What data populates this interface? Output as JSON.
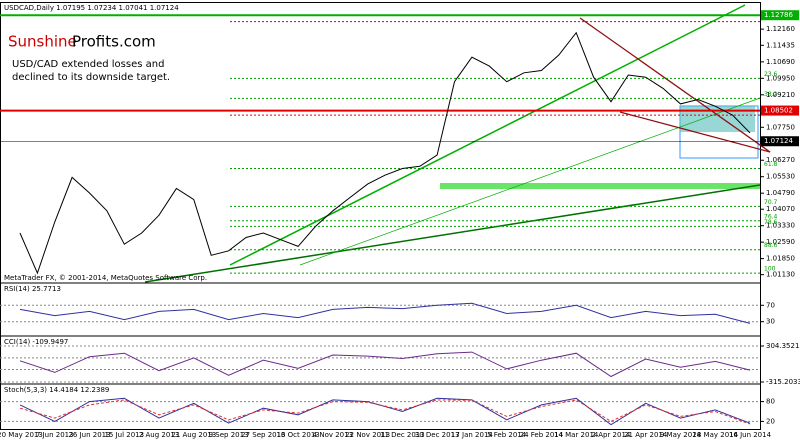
{
  "brand": {
    "red": "Sunshine",
    "dark": "Profits.com"
  },
  "note": [
    "USD/CAD extended losses and",
    "declined to its downside target."
  ],
  "copyright": "MetaTrader FX, © 2001-2014, MetaQuotes Software Corp.",
  "chart_data": [
    {
      "type": "line",
      "title": "USDCAD,Daily  1.07195 1.07234 1.07041 1.07124",
      "categories": [
        "20 May 2013",
        null,
        "7 Jun 2013",
        null,
        "26 Jun 2013",
        null,
        "15 Jul 2013",
        null,
        "2 Aug 2013",
        null,
        "21 Aug 2013",
        null,
        "9 Sep 2013",
        null,
        "27 Sep 2013",
        null,
        "16 Oct 2013",
        null,
        "4 Nov 2013",
        null,
        "22 Nov 2013",
        null,
        "11 Dec 2013",
        null,
        "30 Dec 2013",
        null,
        "17 Jan 2014",
        null,
        "5 Feb 2014",
        null,
        "24 Feb 2014",
        null,
        "14 Mar 2014",
        null,
        "2 Apr 2014",
        null,
        "21 Apr 2014",
        null,
        "9 May 2014",
        null,
        "28 May 2014",
        null,
        "16 Jun 2014"
      ],
      "values": [
        1.03,
        1.012,
        1.035,
        1.055,
        1.048,
        1.04,
        1.025,
        1.03,
        1.038,
        1.05,
        1.045,
        1.02,
        1.022,
        1.028,
        1.03,
        1.027,
        1.024,
        1.033,
        1.04,
        1.046,
        1.052,
        1.056,
        1.059,
        1.06,
        1.065,
        1.098,
        1.109,
        1.105,
        1.098,
        1.102,
        1.103,
        1.11,
        1.12,
        1.1,
        1.089,
        1.101,
        1.1,
        1.095,
        1.088,
        1.09,
        1.087,
        1.083,
        1.075
      ],
      "color": "#000000",
      "ylim": [
        1.008,
        1.132
      ],
      "yticks": [
        {
          "value": 1.1216,
          "label": "1.12160"
        },
        {
          "value": 1.11435,
          "label": "1.11435"
        },
        {
          "value": 1.1069,
          "label": "1.10690"
        },
        {
          "value": 1.0995,
          "label": "1.09950"
        },
        {
          "value": 1.0921,
          "label": "1.09210"
        },
        {
          "value": 1.0775,
          "label": "1.07750"
        },
        {
          "value": 1.0627,
          "label": "1.06270"
        },
        {
          "value": 1.0553,
          "label": "1.05530"
        },
        {
          "value": 1.0479,
          "label": "1.04790"
        },
        {
          "value": 1.0407,
          "label": "1.04070"
        },
        {
          "value": 1.0333,
          "label": "1.03330"
        },
        {
          "value": 1.0259,
          "label": "1.02590"
        },
        {
          "value": 1.0185,
          "label": "1.01850"
        },
        {
          "value": 1.0113,
          "label": "1.01130"
        }
      ],
      "levels": [
        {
          "value": 1.12786,
          "label": "1.12786",
          "color": "#00b000"
        },
        {
          "value": 1.08502,
          "label": "1.08502",
          "color": "#e00000"
        },
        {
          "value": 1.07124,
          "label": "1.07124",
          "color": "#000000"
        }
      ],
      "fib_levels": [
        {
          "value": 1.125,
          "label": "88.6",
          "color": "#e00000"
        },
        {
          "value": 1.0995,
          "label": "23.6",
          "color": "#00a000"
        },
        {
          "value": 1.0905,
          "label": "38.2",
          "color": "#00a000"
        },
        {
          "value": 1.083,
          "label": "50.0",
          "color": "#e00000"
        },
        {
          "value": 1.059,
          "label": "61.8",
          "color": "#00a000"
        },
        {
          "value": 1.042,
          "label": "70.7",
          "color": "#00a000"
        },
        {
          "value": 1.0355,
          "label": "76.4",
          "color": "#00a000"
        },
        {
          "value": 1.033,
          "label": "78.6",
          "color": "#00a000"
        },
        {
          "value": 1.0225,
          "label": "88.6",
          "color": "#00a000"
        },
        {
          "value": 1.012,
          "label": "100",
          "color": "#00a000"
        }
      ]
    },
    {
      "type": "line",
      "title": "RSI(14) 25.7713",
      "color": "#3030a0",
      "values": [
        60,
        45,
        55,
        35,
        55,
        60,
        35,
        50,
        40,
        60,
        65,
        62,
        70,
        75,
        50,
        55,
        70,
        40,
        55,
        45,
        48,
        25.7713
      ],
      "ylim": [
        0,
        100
      ],
      "yticks": [
        70,
        30
      ]
    },
    {
      "type": "line",
      "title": "CCI(14) -109.9497",
      "color": "#6a2a8a",
      "values": [
        50,
        -150,
        120,
        180,
        -120,
        100,
        -200,
        60,
        -80,
        150,
        130,
        90,
        170,
        200,
        -90,
        60,
        180,
        -220,
        80,
        -60,
        40,
        -109.9497
      ],
      "ylim": [
        -315.2033,
        304.3521
      ],
      "yticks": [
        304.3521,
        -315.2033
      ],
      "grid_levels": [
        100,
        -100
      ]
    },
    {
      "type": "line",
      "title": "Stoch(5,3,3) 14.4184 12.2389",
      "series": [
        {
          "name": "Main",
          "color": "#3030a0",
          "values": [
            70,
            20,
            80,
            90,
            30,
            75,
            15,
            60,
            40,
            85,
            80,
            50,
            90,
            85,
            25,
            70,
            90,
            10,
            75,
            30,
            55,
            14.4184
          ]
        },
        {
          "name": "Signal",
          "color": "#e03030",
          "values": [
            60,
            30,
            70,
            85,
            40,
            70,
            25,
            55,
            45,
            80,
            78,
            55,
            85,
            84,
            35,
            65,
            85,
            20,
            70,
            35,
            50,
            12.2389
          ]
        }
      ],
      "ylim": [
        0,
        100
      ],
      "yticks": [
        80,
        20
      ]
    }
  ]
}
